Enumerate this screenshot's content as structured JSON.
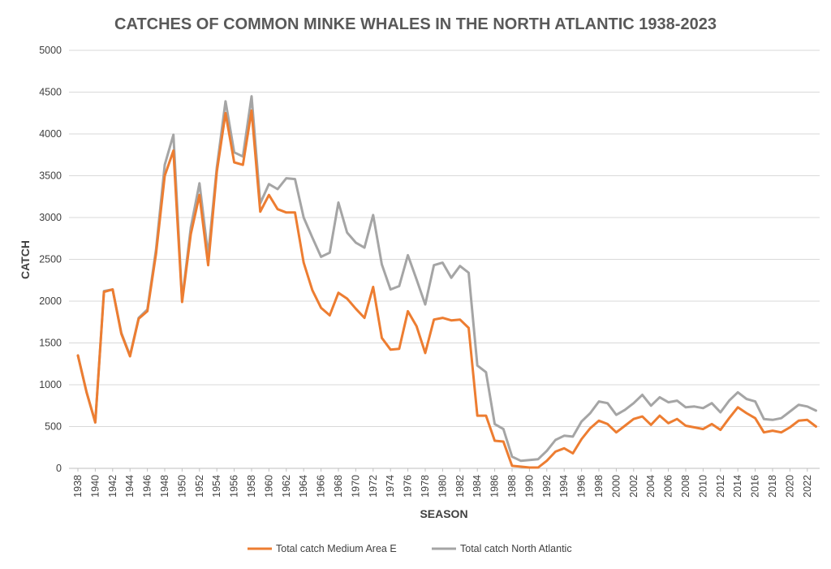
{
  "chart_data": {
    "type": "line",
    "title": "CATCHES OF COMMON MINKE WHALES IN THE NORTH ATLANTIC 1938-2023",
    "xlabel": "SEASON",
    "ylabel": "CATCH",
    "ylim": [
      0,
      5000
    ],
    "yticks": [
      0,
      500,
      1000,
      1500,
      2000,
      2500,
      3000,
      3500,
      4000,
      4500,
      5000
    ],
    "xlim": [
      1938,
      2023
    ],
    "xtick_labels": [
      "1938",
      "1940",
      "1942",
      "1944",
      "1946",
      "1948",
      "1950",
      "1952",
      "1954",
      "1956",
      "1958",
      "1960",
      "1962",
      "1964",
      "1966",
      "1968",
      "1970",
      "1972",
      "1974",
      "1976",
      "1978",
      "1980",
      "1982",
      "1984",
      "1986",
      "1988",
      "1990",
      "1992",
      "1994",
      "1996",
      "1998",
      "2000",
      "2002",
      "2004",
      "2006",
      "2008",
      "2010",
      "2012",
      "2014",
      "2016",
      "2018",
      "2020",
      "2022"
    ],
    "grid": "horizontal",
    "legend_position": "bottom",
    "x": [
      1938,
      1939,
      1940,
      1941,
      1942,
      1943,
      1944,
      1945,
      1946,
      1947,
      1948,
      1949,
      1950,
      1951,
      1952,
      1953,
      1954,
      1955,
      1956,
      1957,
      1958,
      1959,
      1960,
      1961,
      1962,
      1963,
      1964,
      1965,
      1966,
      1967,
      1968,
      1969,
      1970,
      1971,
      1972,
      1973,
      1974,
      1975,
      1976,
      1977,
      1978,
      1979,
      1980,
      1981,
      1982,
      1983,
      1984,
      1985,
      1986,
      1987,
      1988,
      1989,
      1990,
      1991,
      1992,
      1993,
      1994,
      1995,
      1996,
      1997,
      1998,
      1999,
      2000,
      2001,
      2002,
      2003,
      2004,
      2005,
      2006,
      2007,
      2008,
      2009,
      2010,
      2011,
      2012,
      2013,
      2014,
      2015,
      2016,
      2017,
      2018,
      2019,
      2020,
      2021,
      2022,
      2023
    ],
    "series": [
      {
        "name": "Total catch Medium Area E",
        "color": "#ed7d31",
        "values": [
          1350,
          910,
          550,
          2110,
          2140,
          1610,
          1340,
          1790,
          1880,
          2570,
          3500,
          3800,
          1990,
          2800,
          3270,
          2430,
          3550,
          4250,
          3660,
          3630,
          4280,
          3070,
          3270,
          3100,
          3060,
          3060,
          2460,
          2130,
          1920,
          1830,
          2100,
          2030,
          1910,
          1800,
          2170,
          1560,
          1420,
          1430,
          1880,
          1700,
          1380,
          1780,
          1800,
          1770,
          1780,
          1680,
          630,
          630,
          330,
          320,
          30,
          20,
          10,
          10,
          90,
          200,
          240,
          180,
          350,
          480,
          570,
          530,
          430,
          510,
          590,
          620,
          520,
          630,
          540,
          590,
          510,
          490,
          470,
          530,
          460,
          600,
          730,
          660,
          600,
          430,
          450,
          430,
          490,
          570,
          580,
          500
        ]
      },
      {
        "name": "Total catch North Atlantic",
        "color": "#a5a5a5",
        "values": [
          1350,
          910,
          550,
          2120,
          2140,
          1620,
          1350,
          1800,
          1900,
          2620,
          3630,
          3990,
          2010,
          2880,
          3410,
          2550,
          3600,
          4390,
          3780,
          3730,
          4450,
          3170,
          3400,
          3340,
          3470,
          3460,
          3000,
          2760,
          2530,
          2580,
          3180,
          2820,
          2700,
          2640,
          3030,
          2440,
          2140,
          2180,
          2550,
          2260,
          1960,
          2430,
          2460,
          2280,
          2420,
          2340,
          1230,
          1150,
          530,
          470,
          140,
          90,
          100,
          110,
          210,
          340,
          390,
          380,
          560,
          660,
          800,
          780,
          640,
          700,
          780,
          880,
          750,
          850,
          790,
          810,
          730,
          740,
          720,
          780,
          670,
          810,
          910,
          830,
          800,
          590,
          580,
          600,
          680,
          760,
          740,
          690
        ]
      }
    ]
  }
}
